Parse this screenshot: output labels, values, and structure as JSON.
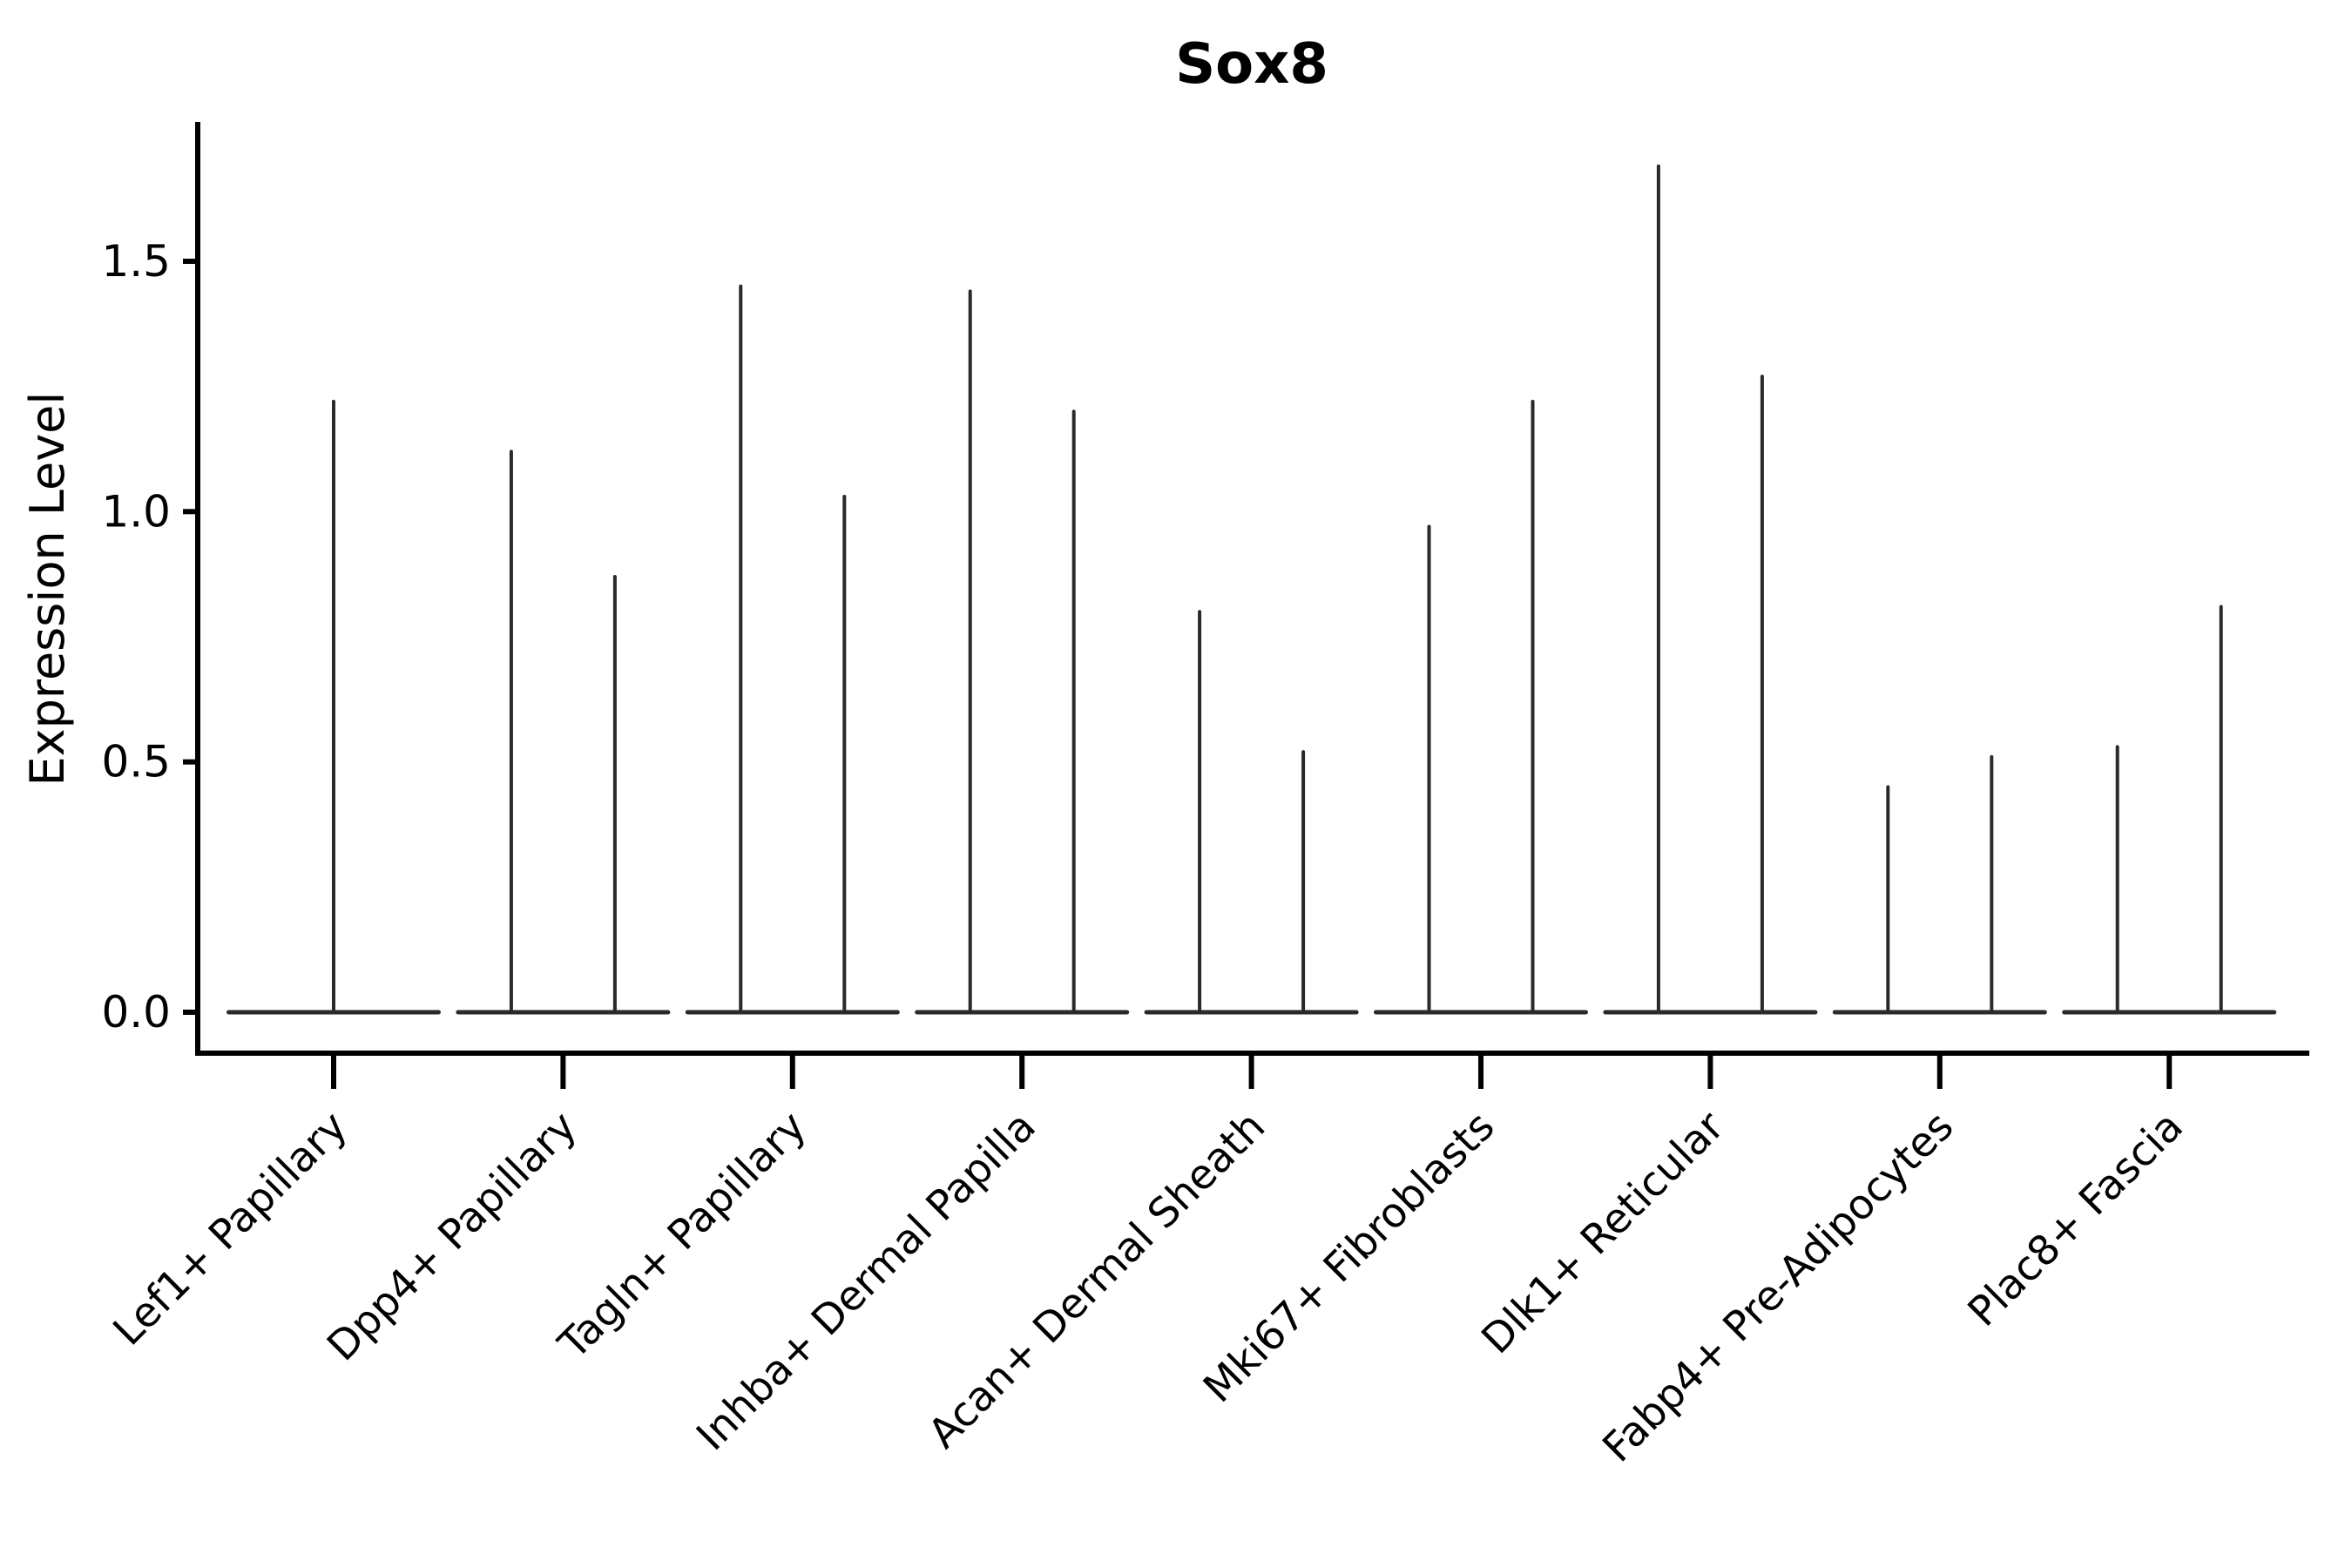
{
  "page": {
    "background": "#ffffff"
  },
  "chart_data": {
    "type": "violin",
    "title": "Sox8",
    "ylabel": "Expression Level",
    "xlabel": "",
    "grid": false,
    "legend": null,
    "yticks": [
      0.0,
      0.5,
      1.0,
      1.5
    ],
    "ytick_labels": [
      "0.0",
      "0.5",
      "1.0",
      "1.5"
    ],
    "ylim": [
      -0.09,
      1.78
    ],
    "baseline_value": 0.0,
    "categories": [
      "Lef1+ Papillary",
      "Dpp4+ Papillary",
      "Tagln+ Papillary",
      "Inhba+ Dermal Papilla",
      "Acan+ Dermal Sheath",
      "Mki67+ Fibroblasts",
      "Dlk1+ Reticular",
      "Fabp4+ Pre-Adipocytes",
      "Plac8+ Fascia"
    ],
    "groups": [
      {
        "category": "Lef1+ Papillary",
        "violin_maxima": [
          1.22
        ]
      },
      {
        "category": "Dpp4+ Papillary",
        "violin_maxima": [
          1.12,
          0.87
        ]
      },
      {
        "category": "Tagln+ Papillary",
        "violin_maxima": [
          1.45,
          1.03
        ]
      },
      {
        "category": "Inhba+ Dermal Papilla",
        "violin_maxima": [
          1.44,
          1.2
        ]
      },
      {
        "category": "Acan+ Dermal Sheath",
        "violin_maxima": [
          0.8,
          0.52
        ]
      },
      {
        "category": "Mki67+ Fibroblasts",
        "violin_maxima": [
          0.97,
          1.22
        ]
      },
      {
        "category": "Dlk1+ Reticular",
        "violin_maxima": [
          1.69,
          1.27
        ]
      },
      {
        "category": "Fabp4+ Pre-Adipocytes",
        "violin_maxima": [
          0.45,
          0.51
        ]
      },
      {
        "category": "Plac8+ Fascia",
        "violin_maxima": [
          0.53,
          0.81
        ]
      }
    ],
    "colors": {
      "violin_line": "#2a2a2a",
      "axis_line": "#000000",
      "text": "#000000"
    }
  }
}
